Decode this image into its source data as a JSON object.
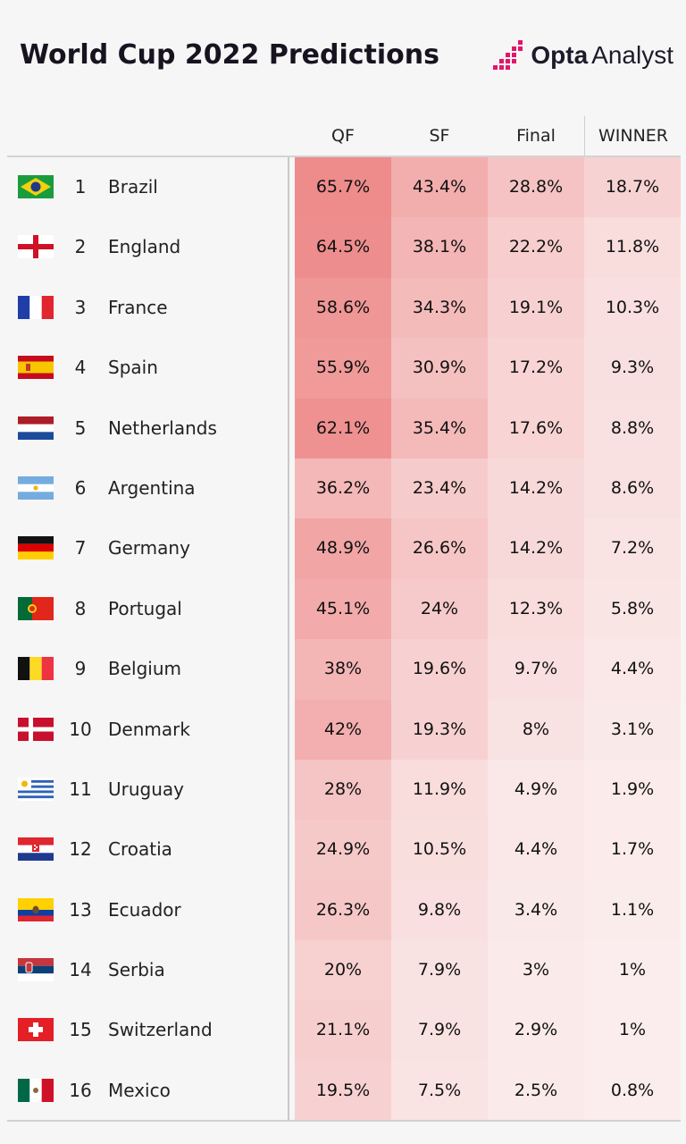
{
  "title": "World Cup 2022 Predictions",
  "logo": {
    "brand": "Opta",
    "sub": "Analyst",
    "accent": "#e2156b"
  },
  "chart_data": {
    "type": "table",
    "title": "World Cup 2022 Predictions",
    "columns": [
      "QF",
      "SF",
      "Final",
      "WINNER"
    ],
    "rows": [
      {
        "rank": "1",
        "team": "Brazil",
        "flag": "brazil-flag-icon",
        "values": [
          65.7,
          43.4,
          28.8,
          18.7
        ]
      },
      {
        "rank": "2",
        "team": "England",
        "flag": "england-flag-icon",
        "values": [
          64.5,
          38.1,
          22.2,
          11.8
        ]
      },
      {
        "rank": "3",
        "team": "France",
        "flag": "france-flag-icon",
        "values": [
          58.6,
          34.3,
          19.1,
          10.3
        ]
      },
      {
        "rank": "4",
        "team": "Spain",
        "flag": "spain-flag-icon",
        "values": [
          55.9,
          30.9,
          17.2,
          9.3
        ]
      },
      {
        "rank": "5",
        "team": "Netherlands",
        "flag": "netherlands-flag-icon",
        "values": [
          62.1,
          35.4,
          17.6,
          8.8
        ]
      },
      {
        "rank": "6",
        "team": "Argentina",
        "flag": "argentina-flag-icon",
        "values": [
          36.2,
          23.4,
          14.2,
          8.6
        ]
      },
      {
        "rank": "7",
        "team": "Germany",
        "flag": "germany-flag-icon",
        "values": [
          48.9,
          26.6,
          14.2,
          7.2
        ]
      },
      {
        "rank": "8",
        "team": "Portugal",
        "flag": "portugal-flag-icon",
        "values": [
          45.1,
          24,
          12.3,
          5.8
        ]
      },
      {
        "rank": "9",
        "team": "Belgium",
        "flag": "belgium-flag-icon",
        "values": [
          38,
          19.6,
          9.7,
          4.4
        ]
      },
      {
        "rank": "10",
        "team": "Denmark",
        "flag": "denmark-flag-icon",
        "values": [
          42,
          19.3,
          8,
          3.1
        ]
      },
      {
        "rank": "11",
        "team": "Uruguay",
        "flag": "uruguay-flag-icon",
        "values": [
          28,
          11.9,
          4.9,
          1.9
        ]
      },
      {
        "rank": "12",
        "team": "Croatia",
        "flag": "croatia-flag-icon",
        "values": [
          24.9,
          10.5,
          4.4,
          1.7
        ]
      },
      {
        "rank": "13",
        "team": "Ecuador",
        "flag": "ecuador-flag-icon",
        "values": [
          26.3,
          9.8,
          3.4,
          1.1
        ]
      },
      {
        "rank": "14",
        "team": "Serbia",
        "flag": "serbia-flag-icon",
        "values": [
          20,
          7.9,
          3,
          1
        ]
      },
      {
        "rank": "15",
        "team": "Switzerland",
        "flag": "switzerland-flag-icon",
        "values": [
          21.1,
          7.9,
          2.9,
          1
        ]
      },
      {
        "rank": "16",
        "team": "Mexico",
        "flag": "mexico-flag-icon",
        "values": [
          19.5,
          7.5,
          2.5,
          0.8
        ]
      }
    ],
    "unit": "%",
    "heat_color_low": "#fbeeee",
    "heat_color_high": "#ee8b8b"
  }
}
